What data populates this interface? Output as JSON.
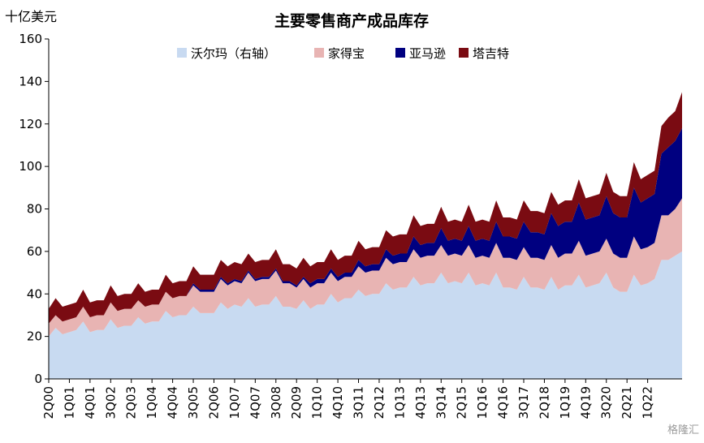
{
  "chart_data": {
    "type": "area",
    "stacked": true,
    "title": "主要零售商产成品库存",
    "ylabel": "十亿美元",
    "ylim": [
      0,
      160
    ],
    "yticks": [
      0,
      20,
      40,
      60,
      80,
      100,
      120,
      140,
      160
    ],
    "x_tick_labels": [
      "2Q00",
      "1Q01",
      "4Q01",
      "3Q02",
      "2Q03",
      "1Q04",
      "4Q04",
      "3Q05",
      "2Q06",
      "1Q07",
      "4Q07",
      "3Q08",
      "2Q09",
      "1Q10",
      "4Q10",
      "3Q11",
      "2Q12",
      "1Q13",
      "4Q13",
      "3Q14",
      "2Q15",
      "1Q16",
      "4Q16",
      "3Q17",
      "2Q18",
      "1Q19",
      "4Q19",
      "3Q20",
      "2Q21",
      "1Q22"
    ],
    "x_range": [
      "2Q00",
      "2Q22"
    ],
    "grid": false,
    "legend_position": "top",
    "series": [
      {
        "name": "沃尔玛（右轴）",
        "color": "#c8daf1",
        "values": [
          20,
          24,
          21,
          22,
          23,
          27,
          22,
          23,
          23,
          28,
          24,
          25,
          25,
          29,
          26,
          27,
          27,
          32,
          29,
          30,
          30,
          34,
          31,
          31,
          31,
          36,
          33,
          35,
          34,
          38,
          34,
          35,
          35,
          39,
          34,
          34,
          33,
          37,
          33,
          35,
          35,
          40,
          36,
          38,
          38,
          42,
          39,
          40,
          40,
          45,
          42,
          43,
          43,
          48,
          44,
          45,
          45,
          50,
          45,
          46,
          45,
          50,
          44,
          45,
          44,
          50,
          43,
          43,
          42,
          48,
          43,
          43,
          42,
          48,
          42,
          44,
          44,
          49,
          43,
          44,
          45,
          50,
          43,
          41,
          41,
          49,
          44,
          45,
          47,
          56,
          56,
          58,
          60
        ]
      },
      {
        "name": "家得宝",
        "color": "#e8b4b3",
        "values": [
          6,
          6,
          6,
          6,
          6,
          7,
          7,
          7,
          7,
          8,
          8,
          8,
          8,
          8,
          8,
          8,
          8,
          9,
          9,
          9,
          9,
          10,
          10,
          10,
          10,
          11,
          11,
          11,
          11,
          12,
          12,
          12,
          12,
          12,
          11,
          11,
          10,
          10,
          10,
          10,
          10,
          10,
          10,
          10,
          10,
          11,
          11,
          11,
          11,
          12,
          12,
          12,
          12,
          13,
          13,
          13,
          13,
          13,
          13,
          13,
          13,
          13,
          13,
          13,
          13,
          14,
          14,
          14,
          14,
          14,
          14,
          14,
          14,
          15,
          15,
          15,
          15,
          16,
          15,
          15,
          15,
          16,
          16,
          16,
          16,
          18,
          17,
          17,
          17,
          21,
          21,
          22,
          25
        ]
      },
      {
        "name": "亚马逊",
        "color": "#000080",
        "values": [
          0,
          0,
          0,
          0,
          0,
          0,
          0,
          0,
          0,
          0,
          0,
          0,
          0,
          0,
          0,
          0,
          0,
          0,
          0,
          0,
          0,
          1,
          1,
          1,
          1,
          1,
          1,
          1,
          1,
          1,
          1,
          1,
          1,
          1,
          1,
          1,
          1,
          1,
          2,
          2,
          2,
          2,
          2,
          2,
          2,
          3,
          3,
          3,
          3,
          4,
          4,
          4,
          4,
          6,
          6,
          6,
          6,
          8,
          7,
          7,
          7,
          9,
          8,
          8,
          8,
          10,
          10,
          10,
          10,
          12,
          12,
          12,
          12,
          15,
          15,
          15,
          15,
          18,
          17,
          17,
          17,
          20,
          19,
          19,
          19,
          23,
          22,
          23,
          23,
          29,
          32,
          32,
          33
        ]
      },
      {
        "name": "塔吉特",
        "color": "#7a0b12",
        "values": [
          7,
          8,
          7,
          7,
          7,
          8,
          7,
          7,
          7,
          8,
          7,
          7,
          7,
          8,
          7,
          7,
          7,
          8,
          7,
          7,
          7,
          8,
          7,
          7,
          7,
          8,
          8,
          8,
          8,
          8,
          8,
          8,
          8,
          9,
          8,
          8,
          8,
          9,
          8,
          8,
          8,
          9,
          8,
          8,
          8,
          9,
          8,
          8,
          8,
          9,
          9,
          9,
          9,
          10,
          9,
          9,
          9,
          10,
          9,
          9,
          9,
          10,
          9,
          9,
          9,
          10,
          9,
          9,
          9,
          10,
          10,
          10,
          10,
          10,
          10,
          10,
          10,
          11,
          10,
          10,
          10,
          11,
          10,
          10,
          10,
          12,
          11,
          11,
          11,
          13,
          14,
          14,
          17
        ]
      }
    ]
  }
}
